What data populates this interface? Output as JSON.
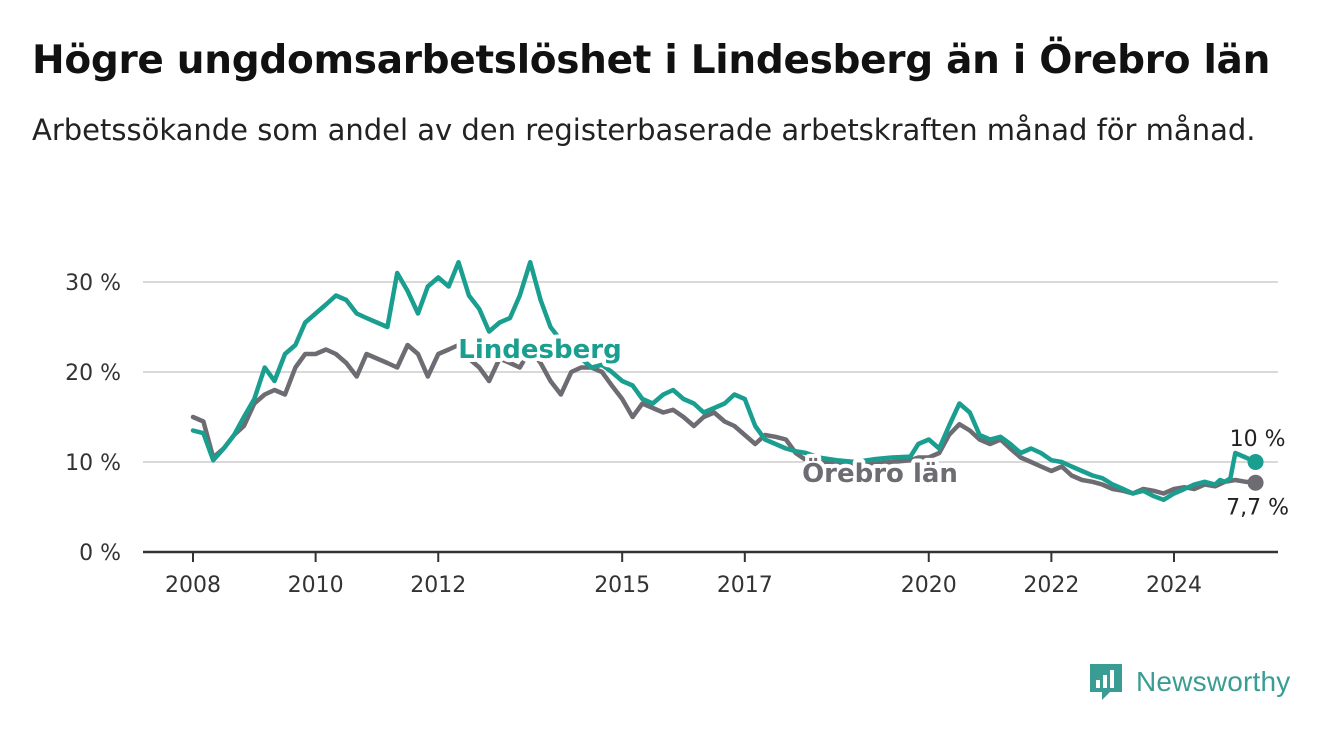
{
  "title": "Högre ungdomsarbetslöshet i Lindesberg än i Örebro län",
  "subtitle": "Arbetssökande som andel av den registerbaserade arbetskraften månad för månad.",
  "brand": {
    "name": "Newsworthy",
    "color": "#3a9d94"
  },
  "chart_data": {
    "type": "line",
    "title": "Högre ungdomsarbetslöshet i Lindesberg än i Örebro län",
    "subtitle": "Arbetssökande som andel av den registerbaserade arbetskraften månad för månad.",
    "xlabel": "",
    "ylabel": "",
    "xlim": [
      2007.2,
      2025.8
    ],
    "ylim": [
      0,
      30
    ],
    "x_ticks": [
      {
        "value": 2008,
        "label": "2008"
      },
      {
        "value": 2010,
        "label": "2010"
      },
      {
        "value": 2012,
        "label": "2012"
      },
      {
        "value": 2015,
        "label": "2015"
      },
      {
        "value": 2017,
        "label": "2017"
      },
      {
        "value": 2020,
        "label": "2020"
      },
      {
        "value": 2022,
        "label": "2022"
      },
      {
        "value": 2024,
        "label": "2024"
      }
    ],
    "y_ticks": [
      {
        "value": 0,
        "label": "0 %"
      },
      {
        "value": 10,
        "label": "10 %"
      },
      {
        "value": 20,
        "label": "20 %"
      },
      {
        "value": 30,
        "label": "30 %"
      }
    ],
    "grid": true,
    "series": [
      {
        "name": "Lindesberg",
        "color": "#1a9e8f",
        "end_label": "10 %",
        "points": [
          [
            2008.0,
            13.5
          ],
          [
            2008.17,
            13.2
          ],
          [
            2008.33,
            10.2
          ],
          [
            2008.5,
            11.5
          ],
          [
            2008.67,
            13.0
          ],
          [
            2008.83,
            15.0
          ],
          [
            2009.0,
            17.0
          ],
          [
            2009.17,
            20.5
          ],
          [
            2009.33,
            19.0
          ],
          [
            2009.5,
            22.0
          ],
          [
            2009.67,
            23.0
          ],
          [
            2009.83,
            25.5
          ],
          [
            2010.0,
            26.5
          ],
          [
            2010.17,
            27.5
          ],
          [
            2010.33,
            28.5
          ],
          [
            2010.5,
            28.0
          ],
          [
            2010.67,
            26.5
          ],
          [
            2010.83,
            26.0
          ],
          [
            2011.0,
            25.5
          ],
          [
            2011.17,
            25.0
          ],
          [
            2011.33,
            31.0
          ],
          [
            2011.5,
            29.0
          ],
          [
            2011.67,
            26.5
          ],
          [
            2011.83,
            29.5
          ],
          [
            2012.0,
            30.5
          ],
          [
            2012.17,
            29.5
          ],
          [
            2012.33,
            32.2
          ],
          [
            2012.5,
            28.5
          ],
          [
            2012.67,
            27.0
          ],
          [
            2012.83,
            24.5
          ],
          [
            2013.0,
            25.5
          ],
          [
            2013.17,
            26.0
          ],
          [
            2013.33,
            28.5
          ],
          [
            2013.5,
            32.2
          ],
          [
            2013.67,
            28.0
          ],
          [
            2013.83,
            25.0
          ],
          [
            2014.0,
            23.5
          ],
          [
            2014.17,
            23.0
          ],
          [
            2014.33,
            21.5
          ],
          [
            2014.5,
            20.5
          ],
          [
            2014.67,
            20.8
          ],
          [
            2014.83,
            20.0
          ],
          [
            2015.0,
            19.0
          ],
          [
            2015.17,
            18.5
          ],
          [
            2015.33,
            17.0
          ],
          [
            2015.5,
            16.5
          ],
          [
            2015.67,
            17.5
          ],
          [
            2015.83,
            18.0
          ],
          [
            2016.0,
            17.0
          ],
          [
            2016.17,
            16.5
          ],
          [
            2016.33,
            15.5
          ],
          [
            2016.5,
            16.0
          ],
          [
            2016.67,
            16.5
          ],
          [
            2016.83,
            17.5
          ],
          [
            2017.0,
            17.0
          ],
          [
            2017.17,
            14.0
          ],
          [
            2017.33,
            12.5
          ],
          [
            2017.5,
            12.0
          ],
          [
            2017.67,
            11.5
          ],
          [
            2017.83,
            11.2
          ],
          [
            2018.0,
            11.0
          ],
          [
            2018.2,
            10.5
          ],
          [
            2018.5,
            10.2
          ],
          [
            2018.8,
            10.0
          ],
          [
            2019.1,
            10.3
          ],
          [
            2019.4,
            10.5
          ],
          [
            2019.7,
            10.6
          ],
          [
            2019.83,
            12.0
          ],
          [
            2020.0,
            12.5
          ],
          [
            2020.17,
            11.5
          ],
          [
            2020.33,
            14.0
          ],
          [
            2020.5,
            16.5
          ],
          [
            2020.67,
            15.5
          ],
          [
            2020.83,
            13.0
          ],
          [
            2021.0,
            12.5
          ],
          [
            2021.17,
            12.8
          ],
          [
            2021.33,
            12.0
          ],
          [
            2021.5,
            11.0
          ],
          [
            2021.67,
            11.5
          ],
          [
            2021.83,
            11.0
          ],
          [
            2022.0,
            10.2
          ],
          [
            2022.17,
            10.0
          ],
          [
            2022.33,
            9.5
          ],
          [
            2022.5,
            9.0
          ],
          [
            2022.67,
            8.5
          ],
          [
            2022.83,
            8.2
          ],
          [
            2023.0,
            7.5
          ],
          [
            2023.17,
            7.0
          ],
          [
            2023.33,
            6.5
          ],
          [
            2023.5,
            6.8
          ],
          [
            2023.67,
            6.2
          ],
          [
            2023.83,
            5.8
          ],
          [
            2024.0,
            6.5
          ],
          [
            2024.17,
            7.0
          ],
          [
            2024.33,
            7.5
          ],
          [
            2024.5,
            7.8
          ],
          [
            2024.67,
            7.5
          ],
          [
            2024.75,
            8.0
          ],
          [
            2024.83,
            7.8
          ],
          [
            2024.92,
            8.2
          ],
          [
            2025.0,
            11.0
          ],
          [
            2025.17,
            10.5
          ],
          [
            2025.33,
            10.0
          ]
        ]
      },
      {
        "name": "Örebro län",
        "color": "#6e6c73",
        "end_label": "7,7 %",
        "points": [
          [
            2008.0,
            15.0
          ],
          [
            2008.17,
            14.5
          ],
          [
            2008.33,
            10.5
          ],
          [
            2008.5,
            11.5
          ],
          [
            2008.67,
            13.0
          ],
          [
            2008.83,
            14.0
          ],
          [
            2009.0,
            16.5
          ],
          [
            2009.17,
            17.5
          ],
          [
            2009.33,
            18.0
          ],
          [
            2009.5,
            17.5
          ],
          [
            2009.67,
            20.5
          ],
          [
            2009.83,
            22.0
          ],
          [
            2010.0,
            22.0
          ],
          [
            2010.17,
            22.5
          ],
          [
            2010.33,
            22.0
          ],
          [
            2010.5,
            21.0
          ],
          [
            2010.67,
            19.5
          ],
          [
            2010.83,
            22.0
          ],
          [
            2011.0,
            21.5
          ],
          [
            2011.17,
            21.0
          ],
          [
            2011.33,
            20.5
          ],
          [
            2011.5,
            23.0
          ],
          [
            2011.67,
            22.0
          ],
          [
            2011.83,
            19.5
          ],
          [
            2012.0,
            22.0
          ],
          [
            2012.17,
            22.5
          ],
          [
            2012.33,
            23.0
          ],
          [
            2012.5,
            21.5
          ],
          [
            2012.67,
            20.5
          ],
          [
            2012.83,
            19.0
          ],
          [
            2013.0,
            21.5
          ],
          [
            2013.17,
            21.0
          ],
          [
            2013.33,
            20.5
          ],
          [
            2013.5,
            22.5
          ],
          [
            2013.67,
            21.0
          ],
          [
            2013.83,
            19.0
          ],
          [
            2014.0,
            17.5
          ],
          [
            2014.17,
            20.0
          ],
          [
            2014.33,
            20.5
          ],
          [
            2014.5,
            20.5
          ],
          [
            2014.67,
            20.0
          ],
          [
            2014.83,
            18.5
          ],
          [
            2015.0,
            17.0
          ],
          [
            2015.17,
            15.0
          ],
          [
            2015.33,
            16.5
          ],
          [
            2015.5,
            16.0
          ],
          [
            2015.67,
            15.5
          ],
          [
            2015.83,
            15.8
          ],
          [
            2016.0,
            15.0
          ],
          [
            2016.17,
            14.0
          ],
          [
            2016.33,
            15.0
          ],
          [
            2016.5,
            15.5
          ],
          [
            2016.67,
            14.5
          ],
          [
            2016.83,
            14.0
          ],
          [
            2017.0,
            13.0
          ],
          [
            2017.17,
            12.0
          ],
          [
            2017.33,
            13.0
          ],
          [
            2017.5,
            12.8
          ],
          [
            2017.67,
            12.5
          ],
          [
            2017.83,
            11.0
          ],
          [
            2018.0,
            10.2
          ],
          [
            2018.2,
            10.0
          ],
          [
            2018.5,
            9.8
          ],
          [
            2018.8,
            9.6
          ],
          [
            2019.1,
            9.8
          ],
          [
            2019.4,
            10.0
          ],
          [
            2019.7,
            10.2
          ],
          [
            2019.83,
            10.5
          ],
          [
            2020.0,
            10.5
          ],
          [
            2020.17,
            11.0
          ],
          [
            2020.33,
            13.0
          ],
          [
            2020.5,
            14.2
          ],
          [
            2020.67,
            13.5
          ],
          [
            2020.83,
            12.5
          ],
          [
            2021.0,
            12.0
          ],
          [
            2021.17,
            12.5
          ],
          [
            2021.33,
            11.5
          ],
          [
            2021.5,
            10.5
          ],
          [
            2021.67,
            10.0
          ],
          [
            2021.83,
            9.5
          ],
          [
            2022.0,
            9.0
          ],
          [
            2022.17,
            9.5
          ],
          [
            2022.33,
            8.5
          ],
          [
            2022.5,
            8.0
          ],
          [
            2022.67,
            7.8
          ],
          [
            2022.83,
            7.5
          ],
          [
            2023.0,
            7.0
          ],
          [
            2023.17,
            6.8
          ],
          [
            2023.33,
            6.5
          ],
          [
            2023.5,
            7.0
          ],
          [
            2023.67,
            6.8
          ],
          [
            2023.83,
            6.5
          ],
          [
            2024.0,
            7.0
          ],
          [
            2024.17,
            7.2
          ],
          [
            2024.33,
            7.0
          ],
          [
            2024.5,
            7.5
          ],
          [
            2024.67,
            7.3
          ],
          [
            2024.83,
            7.8
          ],
          [
            2025.0,
            8.0
          ],
          [
            2025.17,
            7.8
          ],
          [
            2025.33,
            7.7
          ]
        ]
      }
    ]
  }
}
